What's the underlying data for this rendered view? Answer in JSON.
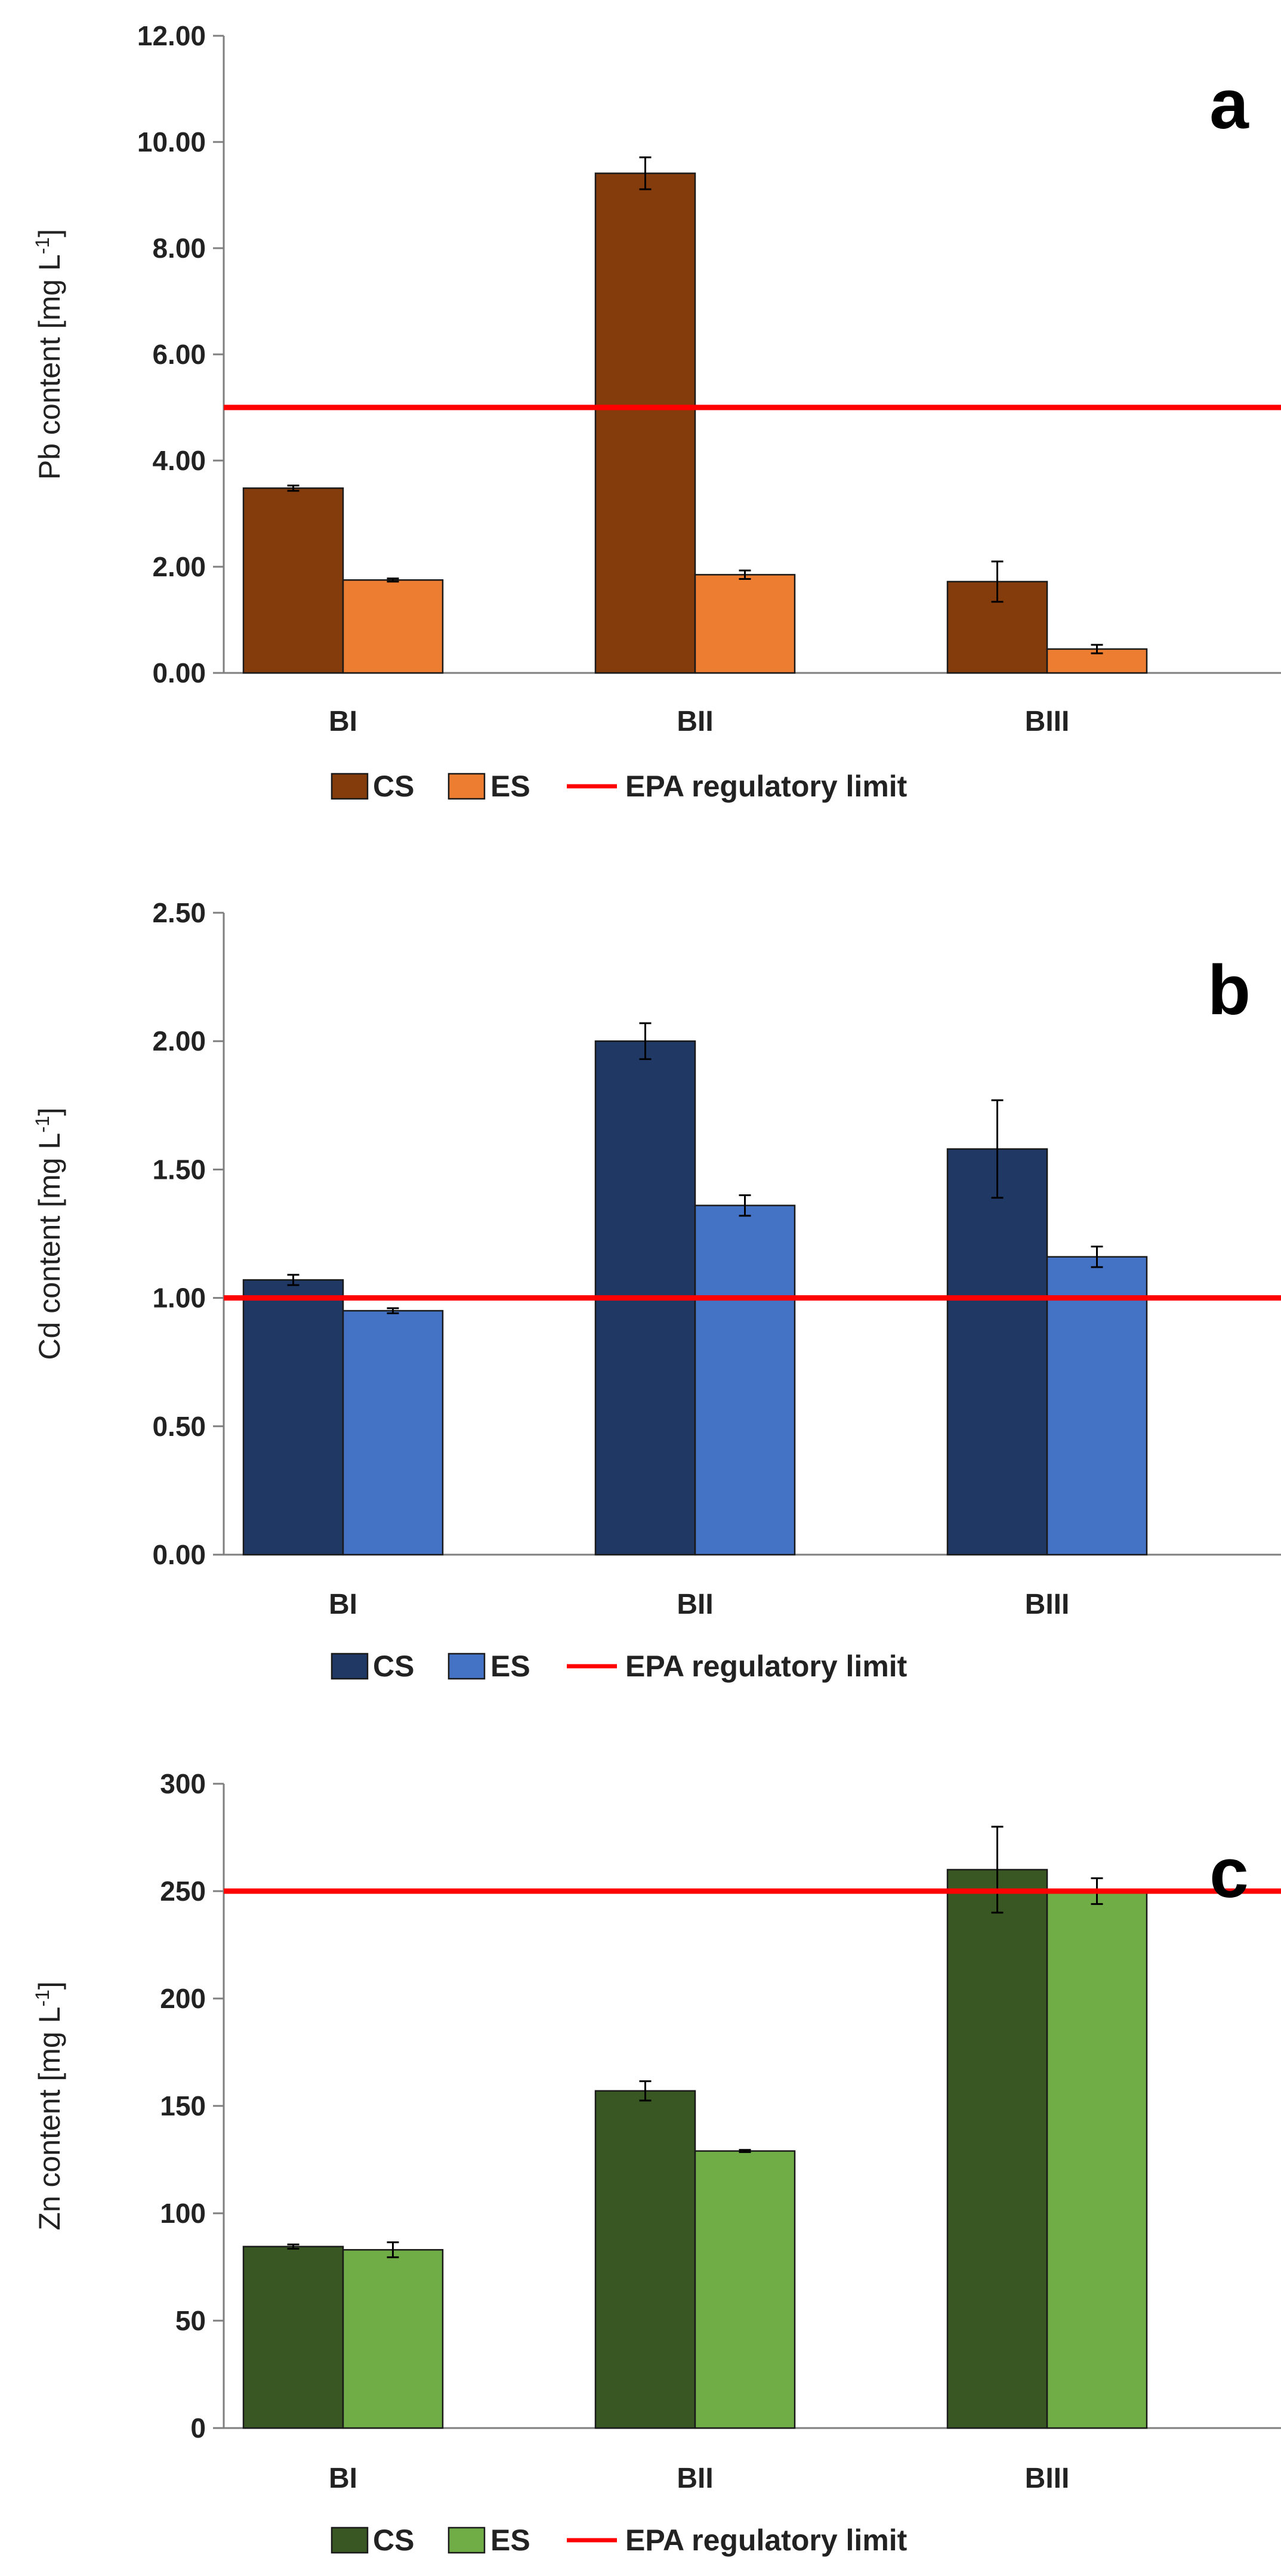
{
  "chart_data": [
    {
      "type": "bar",
      "panel_label": "a",
      "ylabel_main": "Pb content [mg L",
      "ylabel_sup": "-1",
      "ylabel_end": "]",
      "ylim": [
        0,
        12
      ],
      "yticks": [
        "0.00",
        "2.00",
        "4.00",
        "6.00",
        "8.00",
        "10.00",
        "12.00"
      ],
      "categories": [
        "BI",
        "BII",
        "BIII"
      ],
      "series": [
        {
          "name": "CS",
          "color": "#843c0c",
          "values": [
            3.48,
            9.41,
            1.72
          ],
          "errors": [
            0.05,
            0.3,
            0.38
          ]
        },
        {
          "name": "ES",
          "color": "#ed7d31",
          "values": [
            1.75,
            1.85,
            0.45
          ],
          "errors": [
            0.03,
            0.08,
            0.08
          ]
        }
      ],
      "reference_line": {
        "name": "EPA regulatory limit",
        "value": 5.0,
        "color": "#ff0000"
      }
    },
    {
      "type": "bar",
      "panel_label": "b",
      "ylabel_main": "Cd content [mg L",
      "ylabel_sup": "-1",
      "ylabel_end": "]",
      "ylim": [
        0,
        2.5
      ],
      "yticks": [
        "0.00",
        "0.50",
        "1.00",
        "1.50",
        "2.00",
        "2.50"
      ],
      "categories": [
        "BI",
        "BII",
        "BIII"
      ],
      "series": [
        {
          "name": "CS",
          "color": "#203864",
          "values": [
            1.07,
            2.0,
            1.58
          ],
          "errors": [
            0.02,
            0.07,
            0.19
          ]
        },
        {
          "name": "ES",
          "color": "#4472c4",
          "values": [
            0.95,
            1.36,
            1.16
          ],
          "errors": [
            0.01,
            0.04,
            0.04
          ]
        }
      ],
      "reference_line": {
        "name": "EPA regulatory limit",
        "value": 1.0,
        "color": "#ff0000"
      }
    },
    {
      "type": "bar",
      "panel_label": "c",
      "ylabel_main": "Zn content [mg L",
      "ylabel_sup": "-1",
      "ylabel_end": "]",
      "ylim": [
        0,
        300
      ],
      "yticks": [
        "0",
        "50",
        "100",
        "150",
        "200",
        "250",
        "300"
      ],
      "categories": [
        "BI",
        "BII",
        "BIII"
      ],
      "series": [
        {
          "name": "CS",
          "color": "#385723",
          "values": [
            84.5,
            157,
            260
          ],
          "errors": [
            1.0,
            4.5,
            20.0
          ]
        },
        {
          "name": "ES",
          "color": "#70ad47",
          "values": [
            83,
            129,
            250
          ],
          "errors": [
            3.5,
            0.5,
            6.0
          ]
        }
      ],
      "reference_line": {
        "name": "EPA regulatory limit",
        "value": 250,
        "color": "#ff0000"
      }
    }
  ]
}
